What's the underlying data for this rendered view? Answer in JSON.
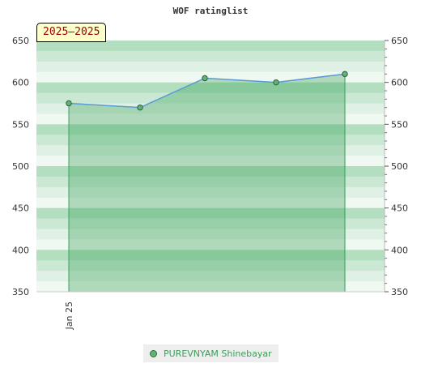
{
  "chart_data": {
    "type": "area",
    "title": "WOF ratinglist",
    "period_badge": "2025–2025",
    "x_tick_labels": [
      "Jan 25"
    ],
    "series": [
      {
        "name": "PUREVNYAM Shinebayar",
        "values": [
          575,
          570,
          605,
          600,
          610
        ]
      }
    ],
    "ylim": [
      350,
      650
    ],
    "y_ticks": [
      350,
      400,
      450,
      500,
      550,
      600,
      650
    ],
    "y_axis_sides": "both",
    "legend_position": "bottom-center",
    "grid": true,
    "colors": {
      "line": "#5b9bd5",
      "fill": "#3aa05a",
      "marker": "#5cb574",
      "band_dark": "#b3dfc0",
      "band_light": "#f0f8f2"
    }
  }
}
